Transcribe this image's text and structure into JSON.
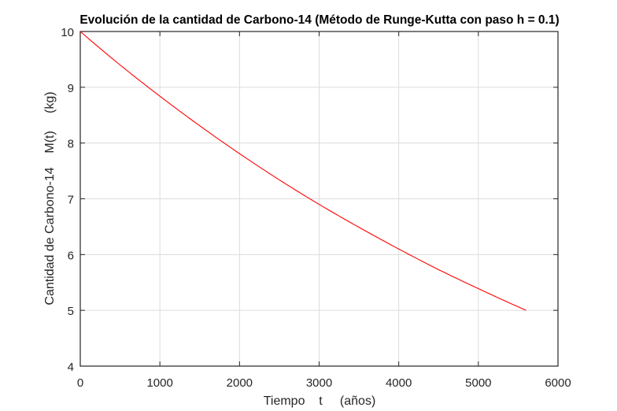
{
  "chart_data": {
    "type": "line",
    "title": "Evolución de la cantidad de Carbono-14 (Método de Runge-Kutta con paso h = 0.1)",
    "xlabel": "Tiempo    t     (años)",
    "ylabel": "Cantidad de Carbono-14    M(t)     (kg)",
    "xlim": [
      0,
      6000
    ],
    "ylim": [
      4,
      10
    ],
    "xticks": [
      0,
      1000,
      2000,
      3000,
      4000,
      5000,
      6000
    ],
    "yticks": [
      4,
      5,
      6,
      7,
      8,
      9,
      10
    ],
    "grid": true,
    "legend": null,
    "series": [
      {
        "name": "M(t)",
        "color": "#ff0000",
        "x": [
          0,
          500,
          1000,
          1500,
          2000,
          2500,
          3000,
          3500,
          4000,
          4500,
          5000,
          5600
        ],
        "y": [
          10.0,
          9.4,
          8.84,
          8.31,
          7.81,
          7.34,
          6.9,
          6.49,
          6.1,
          5.73,
          5.39,
          5.0
        ]
      }
    ]
  },
  "colors": {
    "line": "#ff0000",
    "grid": "#dcdcdc",
    "axis": "#262626"
  }
}
